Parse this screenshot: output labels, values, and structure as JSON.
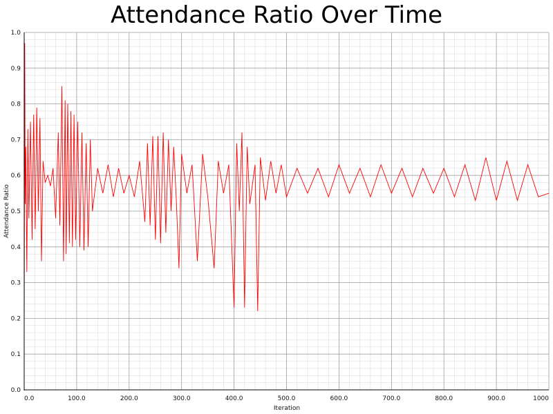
{
  "chart_data": {
    "type": "line",
    "title": "Attendance Ratio Over Time",
    "xlabel": "Iteration",
    "ylabel": "Attendance Ratio",
    "xlim": [
      0,
      1000
    ],
    "ylim": [
      0,
      1.0
    ],
    "x_ticks": [
      "0.0",
      "100.0",
      "200.0",
      "300.0",
      "400.0",
      "500.0",
      "600.0",
      "700.0",
      "800.0",
      "900.0",
      "1000"
    ],
    "y_ticks": [
      "0.0",
      "0.1",
      "0.2",
      "0.3",
      "0.4",
      "0.5",
      "0.6",
      "0.7",
      "0.8",
      "0.9",
      "1.0"
    ],
    "grid": true,
    "series_color": "#ff0000",
    "series": [
      {
        "x": [
          0,
          1,
          2,
          3,
          5,
          7,
          9,
          12,
          15,
          18,
          21,
          24,
          27,
          30,
          33,
          36,
          40,
          45,
          50,
          55,
          60,
          65,
          68,
          72,
          75,
          78,
          80,
          83,
          86,
          89,
          92,
          95,
          98,
          102,
          106,
          110,
          114,
          118,
          122,
          126,
          130,
          140,
          150,
          160,
          170,
          180,
          190,
          200,
          210,
          220,
          230,
          235,
          240,
          245,
          250,
          255,
          260,
          265,
          270,
          275,
          280,
          285,
          290,
          295,
          300,
          310,
          320,
          330,
          340,
          350,
          362,
          370,
          380,
          390,
          400,
          405,
          410,
          415,
          420,
          425,
          430,
          440,
          445,
          450,
          460,
          470,
          480,
          490,
          500,
          520,
          540,
          560,
          580,
          600,
          620,
          640,
          660,
          680,
          700,
          720,
          740,
          760,
          780,
          800,
          820,
          840,
          860,
          880,
          900,
          920,
          940,
          960,
          980,
          1000
        ],
        "y": [
          0.15,
          0.97,
          0.52,
          0.68,
          0.33,
          0.73,
          0.48,
          0.75,
          0.42,
          0.77,
          0.45,
          0.79,
          0.5,
          0.76,
          0.36,
          0.64,
          0.58,
          0.6,
          0.57,
          0.62,
          0.48,
          0.72,
          0.46,
          0.85,
          0.36,
          0.81,
          0.38,
          0.8,
          0.41,
          0.78,
          0.4,
          0.77,
          0.42,
          0.75,
          0.4,
          0.72,
          0.39,
          0.69,
          0.4,
          0.7,
          0.5,
          0.62,
          0.55,
          0.63,
          0.54,
          0.62,
          0.55,
          0.6,
          0.54,
          0.64,
          0.47,
          0.69,
          0.46,
          0.71,
          0.42,
          0.71,
          0.41,
          0.72,
          0.44,
          0.7,
          0.5,
          0.68,
          0.53,
          0.34,
          0.66,
          0.55,
          0.63,
          0.36,
          0.66,
          0.54,
          0.34,
          0.64,
          0.55,
          0.63,
          0.23,
          0.69,
          0.5,
          0.72,
          0.23,
          0.68,
          0.52,
          0.63,
          0.22,
          0.65,
          0.53,
          0.64,
          0.55,
          0.63,
          0.54,
          0.62,
          0.55,
          0.62,
          0.54,
          0.63,
          0.55,
          0.62,
          0.54,
          0.63,
          0.55,
          0.62,
          0.54,
          0.62,
          0.55,
          0.62,
          0.54,
          0.63,
          0.53,
          0.65,
          0.53,
          0.64,
          0.53,
          0.63,
          0.54,
          0.55
        ]
      }
    ]
  }
}
